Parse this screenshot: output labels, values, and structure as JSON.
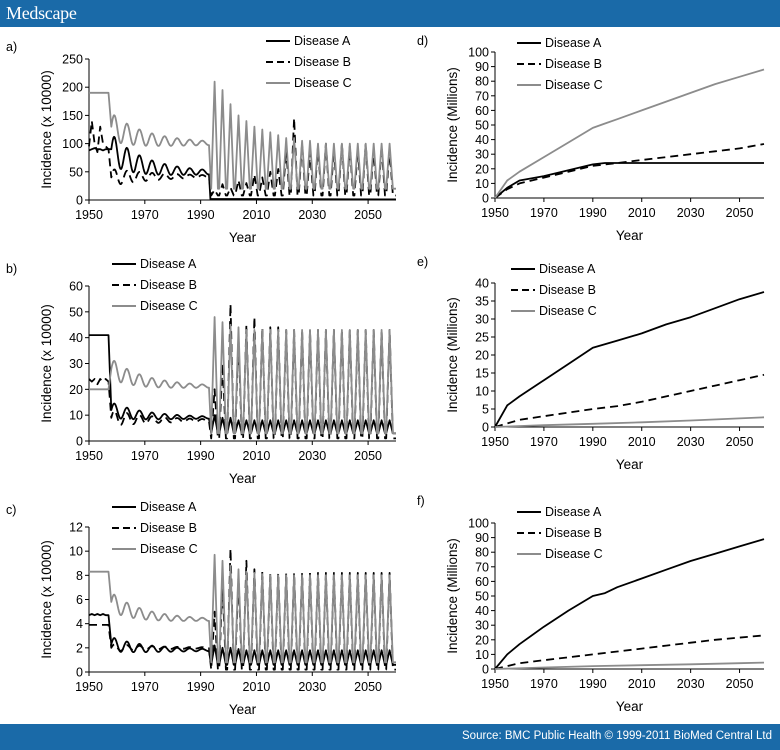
{
  "header": {
    "brand": "Medscape"
  },
  "footer": {
    "source": "Source: BMC Public Health © 1999-2011 BioMed Central Ltd"
  },
  "colors": {
    "bar": "#1a6aa8",
    "A": "#000000",
    "B": "#000000",
    "C": "#8c8c8c"
  },
  "chart_data": [
    {
      "id": "a",
      "panel_label": "a)",
      "type": "line",
      "xlabel": "Year",
      "ylabel": "Incidence (x 10000)",
      "xlim": [
        1950,
        2060
      ],
      "ylim": [
        0,
        250
      ],
      "xticks": [
        "1950",
        "1970",
        "1990",
        "2010",
        "2030",
        "2050"
      ],
      "yticks": [
        "0",
        "50",
        "100",
        "150",
        "200",
        "250"
      ],
      "series": [
        {
          "name": "Disease A",
          "style": "solid",
          "pre": [
            88,
            90,
            92,
            90,
            90,
            88,
            90,
            90
          ],
          "start": 90,
          "amp": 28,
          "period": 4.5,
          "eq": 48,
          "post": "zero"
        },
        {
          "name": "Disease B",
          "style": "dashed",
          "pre": [
            95,
            140,
            100,
            85,
            130,
            100,
            95,
            90
          ],
          "start": 40,
          "amp": 15,
          "period": 4.5,
          "eq": 42,
          "post": "spiky",
          "post_base": 8,
          "post_peaks": [
            18,
            28,
            22,
            35,
            30,
            45,
            40,
            50,
            55,
            90,
            145,
            100,
            85,
            95,
            100,
            90,
            100,
            95,
            90,
            100,
            90,
            95,
            90
          ]
        },
        {
          "name": "Disease C",
          "style": "solid",
          "pre": [
            190,
            190,
            190,
            190,
            190,
            190,
            190,
            190
          ],
          "start": 130,
          "amp": 25,
          "period": 4.5,
          "eq": 100,
          "post": "spiky",
          "post_base": 20,
          "post_peaks": [
            210,
            195,
            170,
            150,
            140,
            130,
            125,
            120,
            115,
            110,
            110,
            105,
            105,
            100,
            100,
            100,
            100,
            100,
            100,
            100,
            100,
            100,
            100
          ]
        }
      ]
    },
    {
      "id": "b",
      "panel_label": "b)",
      "type": "line",
      "xlabel": "Year",
      "ylabel": "Incidence (x 10000)",
      "xlim": [
        1950,
        2060
      ],
      "ylim": [
        0,
        60
      ],
      "xticks": [
        "1950",
        "1970",
        "1990",
        "2010",
        "2030",
        "2050"
      ],
      "yticks": [
        "0",
        "10",
        "20",
        "30",
        "40",
        "50",
        "60"
      ],
      "series": [
        {
          "name": "Disease A",
          "style": "solid",
          "pre": [
            41,
            41,
            41,
            41,
            41,
            41,
            41,
            41
          ],
          "start": 12,
          "amp": 3,
          "period": 4.5,
          "eq": 9,
          "post": "spiky",
          "post_base": 3,
          "post_peaks": [
            10,
            9,
            9,
            8,
            8,
            8,
            8,
            8,
            8,
            8,
            8,
            8,
            8,
            8,
            8,
            8,
            8,
            8,
            8,
            8,
            8,
            8,
            8
          ]
        },
        {
          "name": "Disease B",
          "style": "dashed",
          "pre": [
            24,
            23,
            24,
            22,
            24,
            23,
            24,
            23
          ],
          "start": 9,
          "amp": 3,
          "period": 4.5,
          "eq": 8,
          "post": "spiky",
          "post_base": 1,
          "post_peaks": [
            20,
            30,
            53,
            40,
            45,
            48,
            44,
            44,
            44,
            43,
            43,
            43,
            43,
            43,
            43,
            43,
            43,
            43,
            43,
            43,
            43,
            43,
            43
          ]
        },
        {
          "name": "Disease C",
          "style": "solid",
          "pre": [
            20,
            20,
            20,
            20,
            20,
            20,
            20,
            20
          ],
          "start": 28,
          "amp": 4,
          "period": 4.5,
          "eq": 21,
          "post": "spiky",
          "post_base": 3,
          "post_peaks": [
            48,
            46,
            45,
            44,
            43,
            43,
            43,
            43,
            43,
            43,
            43,
            43,
            43,
            43,
            43,
            43,
            43,
            43,
            43,
            43,
            43,
            43,
            43
          ]
        }
      ]
    },
    {
      "id": "c",
      "panel_label": "c)",
      "type": "line",
      "xlabel": "Year",
      "ylabel": "Incidence (x 10000)",
      "xlim": [
        1950,
        2060
      ],
      "ylim": [
        0,
        12
      ],
      "xticks": [
        "1950",
        "1970",
        "1990",
        "2010",
        "2030",
        "2050"
      ],
      "yticks": [
        "0",
        "2",
        "4",
        "6",
        "8",
        "10",
        "12"
      ],
      "series": [
        {
          "name": "Disease A",
          "style": "solid",
          "pre": [
            4.7,
            4.8,
            4.7,
            4.8,
            4.7,
            4.8,
            4.7,
            4.7
          ],
          "start": 2.3,
          "amp": 0.6,
          "period": 4.5,
          "eq": 1.8,
          "post": "spiky",
          "post_base": 0.6,
          "post_peaks": [
            2.2,
            2.0,
            2.0,
            1.9,
            1.8,
            1.8,
            1.8,
            1.8,
            1.8,
            1.8,
            1.8,
            1.8,
            1.8,
            1.8,
            1.8,
            1.8,
            1.8,
            1.8,
            1.8,
            1.8,
            1.8,
            1.8,
            1.8
          ]
        },
        {
          "name": "Disease B",
          "style": "dashed",
          "pre": [
            3.9,
            3.9,
            3.9,
            3.9,
            3.9,
            3.9,
            3.9,
            3.9
          ],
          "start": 2.0,
          "amp": 0.3,
          "period": 4.5,
          "eq": 2.0,
          "post": "spiky",
          "post_base": 0.2,
          "post_peaks": [
            5.0,
            7.5,
            10.2,
            8.0,
            9.2,
            8.5,
            8.3,
            8.2,
            8.2,
            8.2,
            8.2,
            8.2,
            8.2,
            8.2,
            8.2,
            8.2,
            8.2,
            8.2,
            8.2,
            8.2,
            8.2,
            8.2,
            8.2
          ]
        },
        {
          "name": "Disease C",
          "style": "solid",
          "pre": [
            8.3,
            8.3,
            8.3,
            8.3,
            8.3,
            8.3,
            8.3,
            8.3
          ],
          "start": 5.8,
          "amp": 0.8,
          "period": 4.5,
          "eq": 4.3,
          "post": "spiky",
          "post_base": 0.8,
          "post_peaks": [
            9.7,
            9.2,
            8.8,
            8.5,
            8.3,
            8.2,
            8.1,
            8.0,
            8.0,
            8.0,
            8.0,
            8.0,
            8.0,
            8.0,
            8.0,
            8.0,
            8.0,
            8.0,
            8.0,
            8.0,
            8.0,
            8.0,
            8.0
          ]
        }
      ]
    },
    {
      "id": "d",
      "panel_label": "d)",
      "type": "line",
      "xlabel": "Year",
      "ylabel": "Incidence (Millions)",
      "xlim": [
        1950,
        2060
      ],
      "ylim": [
        0,
        100
      ],
      "xticks": [
        "1950",
        "1970",
        "1990",
        "2010",
        "2030",
        "2050"
      ],
      "yticks": [
        "0",
        "10",
        "20",
        "30",
        "40",
        "50",
        "60",
        "70",
        "80",
        "90",
        "100"
      ],
      "series": [
        {
          "name": "Disease A",
          "style": "solid",
          "x": [
            1950,
            1955,
            1960,
            1970,
            1980,
            1990,
            1995,
            2000,
            2060
          ],
          "y": [
            0,
            7,
            12,
            15,
            19,
            23,
            24,
            24,
            24
          ]
        },
        {
          "name": "Disease B",
          "style": "dashed",
          "x": [
            1950,
            1955,
            1960,
            1970,
            1980,
            1990,
            2000,
            2010,
            2020,
            2030,
            2040,
            2050,
            2060
          ],
          "y": [
            0,
            6,
            10,
            14,
            18,
            22,
            24,
            26,
            28,
            30,
            32,
            34,
            37
          ]
        },
        {
          "name": "Disease C",
          "style": "solid",
          "x": [
            1950,
            1955,
            1960,
            1970,
            1980,
            1990,
            1995,
            2000,
            2010,
            2020,
            2030,
            2040,
            2050,
            2060
          ],
          "y": [
            0,
            12,
            18,
            28,
            38,
            48,
            51,
            54,
            60,
            66,
            72,
            78,
            83,
            88
          ]
        }
      ]
    },
    {
      "id": "e",
      "panel_label": "e)",
      "type": "line",
      "xlabel": "Year",
      "ylabel": "Incidence (Millions)",
      "xlim": [
        1950,
        2060
      ],
      "ylim": [
        0,
        40
      ],
      "xticks": [
        "1950",
        "1970",
        "1990",
        "2010",
        "2030",
        "2050"
      ],
      "yticks": [
        "0",
        "5",
        "10",
        "15",
        "20",
        "25",
        "30",
        "35",
        "40"
      ],
      "series": [
        {
          "name": "Disease A",
          "style": "solid",
          "x": [
            1950,
            1955,
            1960,
            1970,
            1980,
            1990,
            2000,
            2010,
            2020,
            2030,
            2040,
            2050,
            2060
          ],
          "y": [
            0,
            6,
            8.5,
            13,
            17.5,
            22,
            24,
            26,
            28.5,
            30.5,
            33,
            35.5,
            37.5
          ]
        },
        {
          "name": "Disease B",
          "style": "dashed",
          "x": [
            1950,
            1960,
            1970,
            1980,
            1990,
            2000,
            2010,
            2020,
            2030,
            2040,
            2050,
            2060
          ],
          "y": [
            0,
            2,
            3,
            4,
            5,
            5.8,
            7,
            8.5,
            10,
            11.5,
            13,
            14.5
          ]
        },
        {
          "name": "Disease C",
          "style": "solid",
          "x": [
            1950,
            1970,
            1990,
            2010,
            2030,
            2050,
            2060
          ],
          "y": [
            0,
            0.5,
            0.9,
            1.3,
            1.8,
            2.4,
            2.7
          ]
        }
      ]
    },
    {
      "id": "f",
      "panel_label": "f)",
      "type": "line",
      "xlabel": "Year",
      "ylabel": "Incidence (Millions)",
      "xlim": [
        1950,
        2060
      ],
      "ylim": [
        0,
        100
      ],
      "xticks": [
        "1950",
        "1970",
        "1990",
        "2010",
        "2030",
        "2050"
      ],
      "yticks": [
        "0",
        "10",
        "20",
        "30",
        "40",
        "50",
        "60",
        "70",
        "80",
        "90",
        "100"
      ],
      "series": [
        {
          "name": "Disease A",
          "style": "solid",
          "x": [
            1950,
            1955,
            1960,
            1970,
            1980,
            1990,
            1995,
            2000,
            2010,
            2020,
            2030,
            2040,
            2050,
            2060
          ],
          "y": [
            0,
            10,
            17,
            29,
            40,
            50,
            52,
            56,
            62,
            68,
            74,
            79,
            84,
            89
          ]
        },
        {
          "name": "Disease B",
          "style": "dashed",
          "x": [
            1950,
            1960,
            1970,
            1980,
            1990,
            2000,
            2010,
            2020,
            2030,
            2040,
            2050,
            2060
          ],
          "y": [
            0,
            4,
            6,
            8,
            10,
            12,
            14,
            16,
            18,
            20,
            21.5,
            23
          ]
        },
        {
          "name": "Disease C",
          "style": "solid",
          "x": [
            1950,
            1970,
            1990,
            2010,
            2030,
            2050,
            2060
          ],
          "y": [
            0,
            1,
            2,
            2.6,
            3.2,
            4,
            4.4
          ]
        }
      ]
    }
  ]
}
